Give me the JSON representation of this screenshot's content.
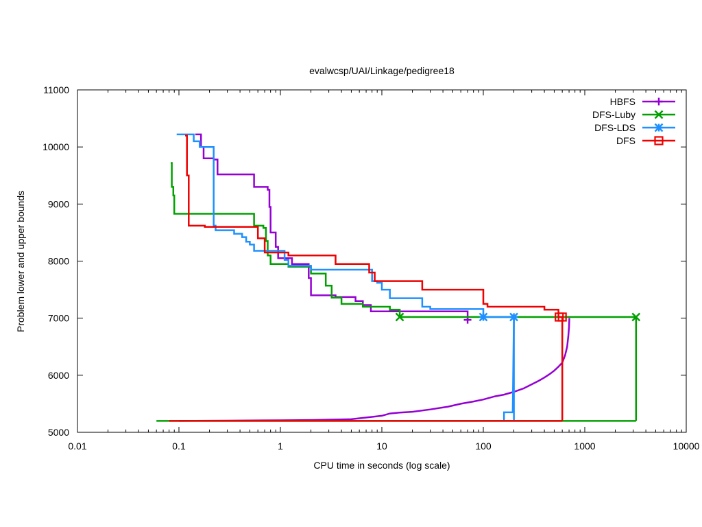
{
  "chart_data": {
    "type": "line",
    "title": "evalwcsp/UAI/Linkage/pedigree18",
    "xlabel": "CPU time in seconds (log scale)",
    "ylabel": "Problem lower and upper bounds",
    "xscale": "log",
    "xlim": [
      0.01,
      10000
    ],
    "ylim": [
      5000,
      11000
    ],
    "xticks": [
      0.01,
      0.1,
      1,
      10,
      100,
      1000,
      10000
    ],
    "xtick_labels": [
      "0.01",
      "0.1",
      "1",
      "10",
      "100",
      "1000",
      "10000"
    ],
    "yticks": [
      5000,
      6000,
      7000,
      8000,
      9000,
      10000,
      11000
    ],
    "ytick_labels": [
      "5000",
      "6000",
      "7000",
      "8000",
      "9000",
      "10000",
      "11000"
    ],
    "grid": false,
    "legend_position": "top-right",
    "series": [
      {
        "name": "HBFS",
        "color": "#9400d3",
        "marker": "plus",
        "upper": [
          [
            0.145,
            10220
          ],
          [
            0.165,
            10220
          ],
          [
            0.165,
            10000
          ],
          [
            0.175,
            10000
          ],
          [
            0.175,
            9800
          ],
          [
            0.22,
            9800
          ],
          [
            0.22,
            9780
          ],
          [
            0.24,
            9780
          ],
          [
            0.24,
            9520
          ],
          [
            0.55,
            9520
          ],
          [
            0.55,
            9300
          ],
          [
            0.75,
            9300
          ],
          [
            0.75,
            9250
          ],
          [
            0.78,
            9250
          ],
          [
            0.78,
            8950
          ],
          [
            0.8,
            8950
          ],
          [
            0.8,
            8500
          ],
          [
            0.9,
            8500
          ],
          [
            0.9,
            8250
          ],
          [
            0.95,
            8250
          ],
          [
            0.95,
            8050
          ],
          [
            1.3,
            8050
          ],
          [
            1.3,
            7950
          ],
          [
            1.9,
            7950
          ],
          [
            1.9,
            7700
          ],
          [
            2.0,
            7700
          ],
          [
            2.0,
            7400
          ],
          [
            3.5,
            7400
          ],
          [
            3.5,
            7370
          ],
          [
            5.5,
            7370
          ],
          [
            5.5,
            7300
          ],
          [
            6.5,
            7300
          ],
          [
            6.5,
            7230
          ],
          [
            7.8,
            7230
          ],
          [
            7.8,
            7120
          ],
          [
            70,
            7120
          ],
          [
            70,
            6970
          ]
        ],
        "lower": [
          [
            0.1,
            5200
          ],
          [
            0.3,
            5205
          ],
          [
            1.0,
            5210
          ],
          [
            2.0,
            5215
          ],
          [
            5.0,
            5230
          ],
          [
            8.0,
            5270
          ],
          [
            10,
            5290
          ],
          [
            12,
            5330
          ],
          [
            15,
            5345
          ],
          [
            20,
            5360
          ],
          [
            30,
            5400
          ],
          [
            45,
            5450
          ],
          [
            60,
            5500
          ],
          [
            80,
            5540
          ],
          [
            100,
            5575
          ],
          [
            130,
            5630
          ],
          [
            160,
            5660
          ],
          [
            200,
            5710
          ],
          [
            250,
            5770
          ],
          [
            300,
            5840
          ],
          [
            350,
            5900
          ],
          [
            400,
            5960
          ],
          [
            450,
            6020
          ],
          [
            500,
            6080
          ],
          [
            550,
            6150
          ],
          [
            600,
            6220
          ],
          [
            640,
            6350
          ],
          [
            670,
            6500
          ],
          [
            690,
            6700
          ],
          [
            700,
            6850
          ],
          [
            705,
            7000
          ]
        ],
        "markers": [
          [
            70,
            6970
          ]
        ]
      },
      {
        "name": "DFS-Luby",
        "color": "#00a000",
        "marker": "cross",
        "upper": [
          [
            0.083,
            9720
          ],
          [
            0.085,
            9720
          ],
          [
            0.085,
            9300
          ],
          [
            0.088,
            9300
          ],
          [
            0.088,
            9150
          ],
          [
            0.09,
            9150
          ],
          [
            0.09,
            8830
          ],
          [
            0.55,
            8830
          ],
          [
            0.55,
            8620
          ],
          [
            0.68,
            8620
          ],
          [
            0.68,
            8580
          ],
          [
            0.72,
            8580
          ],
          [
            0.72,
            8350
          ],
          [
            0.75,
            8350
          ],
          [
            0.75,
            8100
          ],
          [
            0.8,
            8100
          ],
          [
            0.8,
            7950
          ],
          [
            1.2,
            7950
          ],
          [
            1.2,
            7900
          ],
          [
            2.0,
            7900
          ],
          [
            2.0,
            7780
          ],
          [
            2.8,
            7780
          ],
          [
            2.8,
            7570
          ],
          [
            3.2,
            7570
          ],
          [
            3.2,
            7360
          ],
          [
            4.0,
            7360
          ],
          [
            4.0,
            7250
          ],
          [
            6.5,
            7250
          ],
          [
            6.5,
            7200
          ],
          [
            12,
            7200
          ],
          [
            12,
            7150
          ],
          [
            15,
            7150
          ],
          [
            15,
            7020
          ],
          [
            3200,
            7020
          ],
          [
            3200,
            5200
          ]
        ],
        "lower": [
          [
            0.06,
            5200
          ],
          [
            3200,
            5200
          ]
        ],
        "markers": [
          [
            15,
            7020
          ],
          [
            3200,
            7020
          ]
        ]
      },
      {
        "name": "DFS-LDS",
        "color": "#1e90ff",
        "marker": "star",
        "upper": [
          [
            0.095,
            10220
          ],
          [
            0.14,
            10220
          ],
          [
            0.14,
            10100
          ],
          [
            0.16,
            10100
          ],
          [
            0.16,
            10000
          ],
          [
            0.22,
            10000
          ],
          [
            0.22,
            8620
          ],
          [
            0.23,
            8620
          ],
          [
            0.23,
            8540
          ],
          [
            0.35,
            8540
          ],
          [
            0.35,
            8480
          ],
          [
            0.42,
            8480
          ],
          [
            0.42,
            8420
          ],
          [
            0.46,
            8420
          ],
          [
            0.46,
            8340
          ],
          [
            0.5,
            8340
          ],
          [
            0.5,
            8290
          ],
          [
            0.55,
            8290
          ],
          [
            0.55,
            8180
          ],
          [
            1.1,
            8180
          ],
          [
            1.1,
            8020
          ],
          [
            1.2,
            8020
          ],
          [
            1.2,
            7920
          ],
          [
            2.0,
            7920
          ],
          [
            2.0,
            7850
          ],
          [
            8.0,
            7850
          ],
          [
            8.0,
            7650
          ],
          [
            9.0,
            7650
          ],
          [
            9.0,
            7620
          ],
          [
            10,
            7620
          ],
          [
            10,
            7500
          ],
          [
            12,
            7500
          ],
          [
            12,
            7350
          ],
          [
            25,
            7350
          ],
          [
            25,
            7200
          ],
          [
            30,
            7200
          ],
          [
            30,
            7160
          ],
          [
            100,
            7160
          ],
          [
            100,
            7020
          ],
          [
            200,
            7020
          ],
          [
            200,
            5200
          ]
        ],
        "lower": [
          [
            160,
            5200
          ],
          [
            160,
            5350
          ],
          [
            195,
            5350
          ],
          [
            200,
            7020
          ]
        ],
        "markers": [
          [
            100,
            7020
          ],
          [
            200,
            7020
          ]
        ]
      },
      {
        "name": "DFS",
        "color": "#ee0000",
        "marker": "square",
        "upper": [
          [
            0.115,
            10200
          ],
          [
            0.12,
            10200
          ],
          [
            0.12,
            9500
          ],
          [
            0.125,
            9500
          ],
          [
            0.125,
            8620
          ],
          [
            0.18,
            8620
          ],
          [
            0.18,
            8600
          ],
          [
            0.6,
            8600
          ],
          [
            0.6,
            8400
          ],
          [
            0.7,
            8400
          ],
          [
            0.7,
            8150
          ],
          [
            1.2,
            8150
          ],
          [
            1.2,
            8100
          ],
          [
            3.5,
            8100
          ],
          [
            3.5,
            7950
          ],
          [
            7.5,
            7950
          ],
          [
            7.5,
            7800
          ],
          [
            8.5,
            7800
          ],
          [
            8.5,
            7650
          ],
          [
            25,
            7650
          ],
          [
            25,
            7500
          ],
          [
            100,
            7500
          ],
          [
            100,
            7250
          ],
          [
            110,
            7250
          ],
          [
            110,
            7200
          ],
          [
            400,
            7200
          ],
          [
            400,
            7150
          ],
          [
            550,
            7150
          ],
          [
            550,
            7020
          ],
          [
            600,
            7020
          ],
          [
            600,
            5200
          ]
        ],
        "lower": [
          [
            0.08,
            5200
          ],
          [
            600,
            5200
          ]
        ],
        "markers": [
          [
            560,
            7020
          ],
          [
            600,
            7020
          ]
        ]
      }
    ]
  }
}
